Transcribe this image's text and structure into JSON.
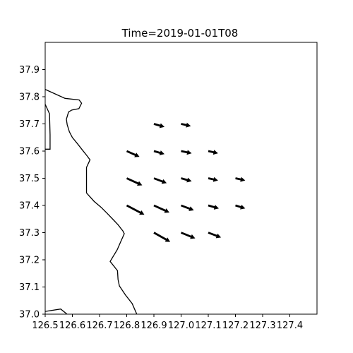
{
  "chart_data": {
    "type": "quiver",
    "title": "Time=2019-01-01T08",
    "xlabel": "",
    "ylabel": "",
    "xlim": [
      126.5,
      127.5
    ],
    "ylim": [
      37.0,
      38.0
    ],
    "x_ticks": [
      126.5,
      126.6,
      126.7,
      126.8,
      126.9,
      127.0,
      127.1,
      127.2,
      127.3,
      127.4
    ],
    "x_tick_labels": [
      "126.5",
      "126.6",
      "126.7",
      "126.8",
      "126.9",
      "127.0",
      "127.1",
      "127.2",
      "127.3",
      "127.4"
    ],
    "y_ticks": [
      37.0,
      37.1,
      37.2,
      37.3,
      37.4,
      37.5,
      37.6,
      37.7,
      37.8,
      37.9
    ],
    "y_tick_labels": [
      "37.0",
      "37.1",
      "37.2",
      "37.3",
      "37.4",
      "37.5",
      "37.6",
      "37.7",
      "37.8",
      "37.9"
    ],
    "grid": false,
    "vectors": [
      {
        "lon": 126.9,
        "lat": 37.7,
        "u": 0.039,
        "v": -0.011
      },
      {
        "lon": 127.0,
        "lat": 37.7,
        "u": 0.036,
        "v": -0.008
      },
      {
        "lon": 126.8,
        "lat": 37.6,
        "u": 0.047,
        "v": -0.021
      },
      {
        "lon": 126.9,
        "lat": 37.6,
        "u": 0.039,
        "v": -0.011
      },
      {
        "lon": 127.0,
        "lat": 37.6,
        "u": 0.039,
        "v": -0.008
      },
      {
        "lon": 127.1,
        "lat": 37.6,
        "u": 0.036,
        "v": -0.008
      },
      {
        "lon": 126.8,
        "lat": 37.5,
        "u": 0.057,
        "v": -0.026
      },
      {
        "lon": 126.9,
        "lat": 37.5,
        "u": 0.047,
        "v": -0.018
      },
      {
        "lon": 127.0,
        "lat": 37.5,
        "u": 0.039,
        "v": -0.011
      },
      {
        "lon": 127.1,
        "lat": 37.5,
        "u": 0.036,
        "v": -0.008
      },
      {
        "lon": 127.2,
        "lat": 37.5,
        "u": 0.036,
        "v": -0.008
      },
      {
        "lon": 126.8,
        "lat": 37.4,
        "u": 0.065,
        "v": -0.034
      },
      {
        "lon": 126.9,
        "lat": 37.4,
        "u": 0.057,
        "v": -0.026
      },
      {
        "lon": 127.0,
        "lat": 37.4,
        "u": 0.047,
        "v": -0.018
      },
      {
        "lon": 127.1,
        "lat": 37.4,
        "u": 0.039,
        "v": -0.011
      },
      {
        "lon": 127.2,
        "lat": 37.4,
        "u": 0.036,
        "v": -0.011
      },
      {
        "lon": 126.9,
        "lat": 37.3,
        "u": 0.06,
        "v": -0.034
      },
      {
        "lon": 127.0,
        "lat": 37.3,
        "u": 0.052,
        "v": -0.021
      },
      {
        "lon": 127.1,
        "lat": 37.3,
        "u": 0.047,
        "v": -0.018
      }
    ],
    "coastlines": [
      [
        [
          126.5,
          37.827
        ],
        [
          126.573,
          37.794
        ],
        [
          126.625,
          37.788
        ],
        [
          126.634,
          37.776
        ],
        [
          126.624,
          37.756
        ],
        [
          126.598,
          37.751
        ],
        [
          126.586,
          37.744
        ],
        [
          126.578,
          37.717
        ],
        [
          126.581,
          37.697
        ],
        [
          126.589,
          37.671
        ],
        [
          126.6,
          37.65
        ],
        [
          126.618,
          37.628
        ],
        [
          126.636,
          37.605
        ],
        [
          126.652,
          37.585
        ],
        [
          126.665,
          37.568
        ],
        [
          126.652,
          37.54
        ],
        [
          126.652,
          37.446
        ],
        [
          126.68,
          37.415
        ],
        [
          126.706,
          37.393
        ],
        [
          126.729,
          37.37
        ],
        [
          126.749,
          37.349
        ],
        [
          126.768,
          37.329
        ],
        [
          126.786,
          37.306
        ],
        [
          126.791,
          37.296
        ],
        [
          126.778,
          37.267
        ],
        [
          126.765,
          37.237
        ],
        [
          126.739,
          37.194
        ],
        [
          126.766,
          37.16
        ],
        [
          126.768,
          37.128
        ],
        [
          126.773,
          37.104
        ],
        [
          126.795,
          37.071
        ],
        [
          126.82,
          37.039
        ],
        [
          126.837,
          37.0
        ]
      ],
      [
        [
          126.5,
          37.772
        ],
        [
          126.516,
          37.737
        ],
        [
          126.517,
          37.698
        ],
        [
          126.518,
          37.66
        ],
        [
          126.518,
          37.607
        ],
        [
          126.5,
          37.607
        ]
      ],
      [
        [
          126.5,
          37.01
        ],
        [
          126.557,
          37.019
        ],
        [
          126.578,
          37.002
        ],
        [
          126.58,
          37.0
        ]
      ]
    ]
  }
}
